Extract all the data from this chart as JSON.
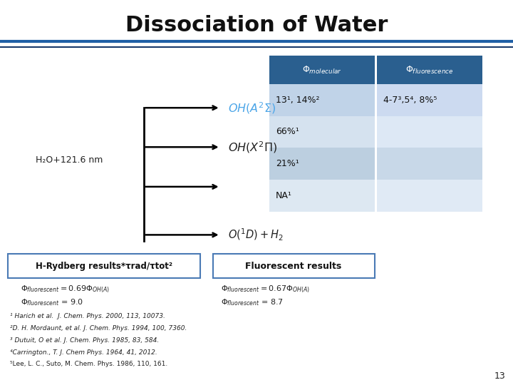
{
  "title": "Dissociation of Water",
  "bg_color": "#ffffff",
  "header_bg": "#2a5f8f",
  "header_text_color": "#ffffff",
  "row_data": [
    [
      "13¹, 14%²",
      "4-7³,5⁴, 8%⁵"
    ],
    [
      "66%¹",
      ""
    ],
    [
      "21%¹",
      ""
    ],
    [
      "NA¹",
      ""
    ]
  ],
  "title_fontsize": 22,
  "blue_line_color": "#1f5fa6",
  "dark_blue": "#1a3a6b",
  "formula_color_blue": "#4da6e8",
  "formula_color_black": "#222222",
  "h2o_label": "H₂O+121.6 nm",
  "box1_label": "H-Rydberg results*τrad/τtot²",
  "box2_label": "Fluorescent results",
  "refs": [
    "¹ Harich et al.  J. Chem. Phys. 2000, 113, 10073.",
    "²D. H. Mordaunt, et al. J. Chem. Phys. 1994, 100, 7360.",
    "³ Dutuit, O et al. J. Chem. Phys. 1985, 83, 584.",
    "⁴Carrington., T. J. Chem Phys. 1964, 41, 2012.",
    "⁵Lee, L. C., Suto, M. Chem. Phys. 1986, 110, 161."
  ],
  "slide_number": "13"
}
